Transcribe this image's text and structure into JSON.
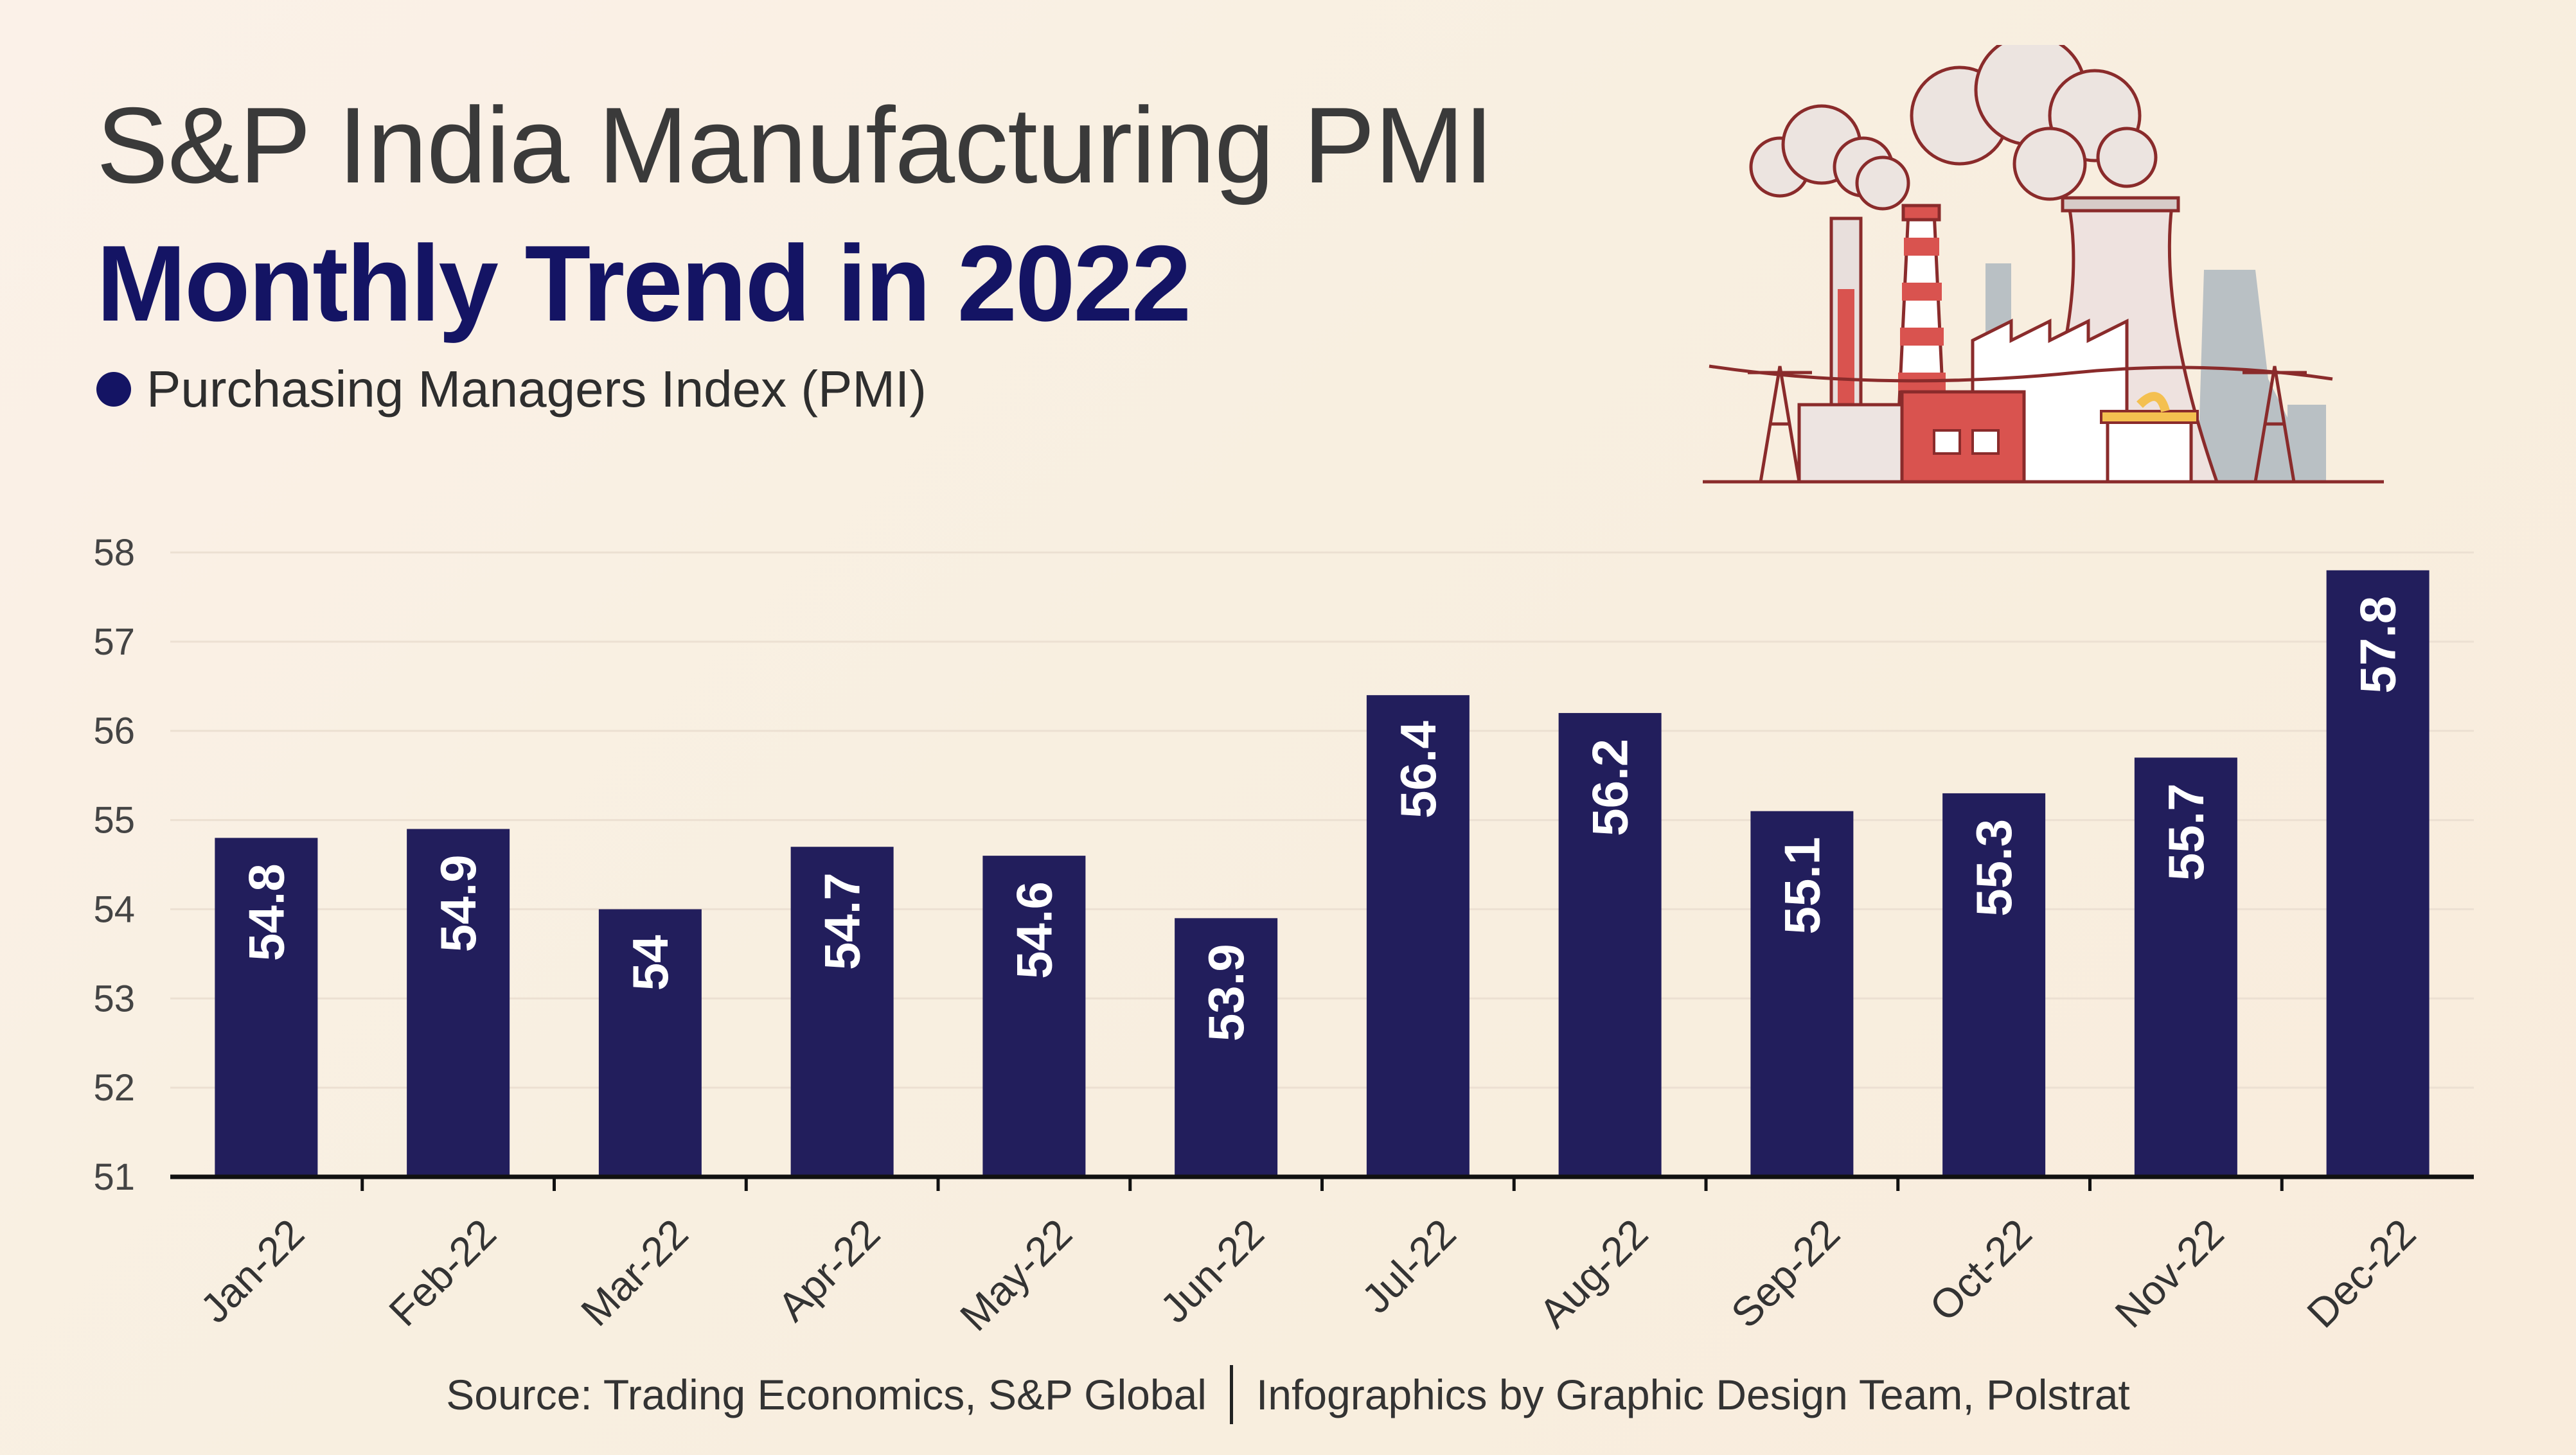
{
  "title": "S&P India Manufacturing PMI",
  "subtitle": "Monthly Trend in 2022",
  "legend_label": "Purchasing Managers Index (PMI)",
  "footer": {
    "source": "Source: Trading Economics, S&P Global",
    "credit": "Infographics by Graphic Design Team, Polstrat"
  },
  "colors": {
    "bar": "#221e5c",
    "title_dark": "#141464",
    "label": "#ffffff"
  },
  "chart_data": {
    "type": "bar",
    "title": "S&P India Manufacturing PMI — Monthly Trend in 2022",
    "series_name": "Purchasing Managers Index (PMI)",
    "categories": [
      "Jan-22",
      "Feb-22",
      "Mar-22",
      "Apr-22",
      "May-22",
      "Jun-22",
      "Jul-22",
      "Aug-22",
      "Sep-22",
      "Oct-22",
      "Nov-22",
      "Dec-22"
    ],
    "values": [
      54.8,
      54.9,
      54,
      54.7,
      54.6,
      53.9,
      56.4,
      56.2,
      55.1,
      55.3,
      55.7,
      57.8
    ],
    "value_labels": [
      "54.8",
      "54.9",
      "54",
      "54.7",
      "54.6",
      "53.9",
      "56.4",
      "56.2",
      "55.1",
      "55.3",
      "55.7",
      "57.8"
    ],
    "yticks": [
      51,
      52,
      53,
      54,
      55,
      56,
      57,
      58
    ],
    "ylim": [
      51,
      58
    ],
    "xlabel": "",
    "ylabel": "",
    "grid": true
  }
}
